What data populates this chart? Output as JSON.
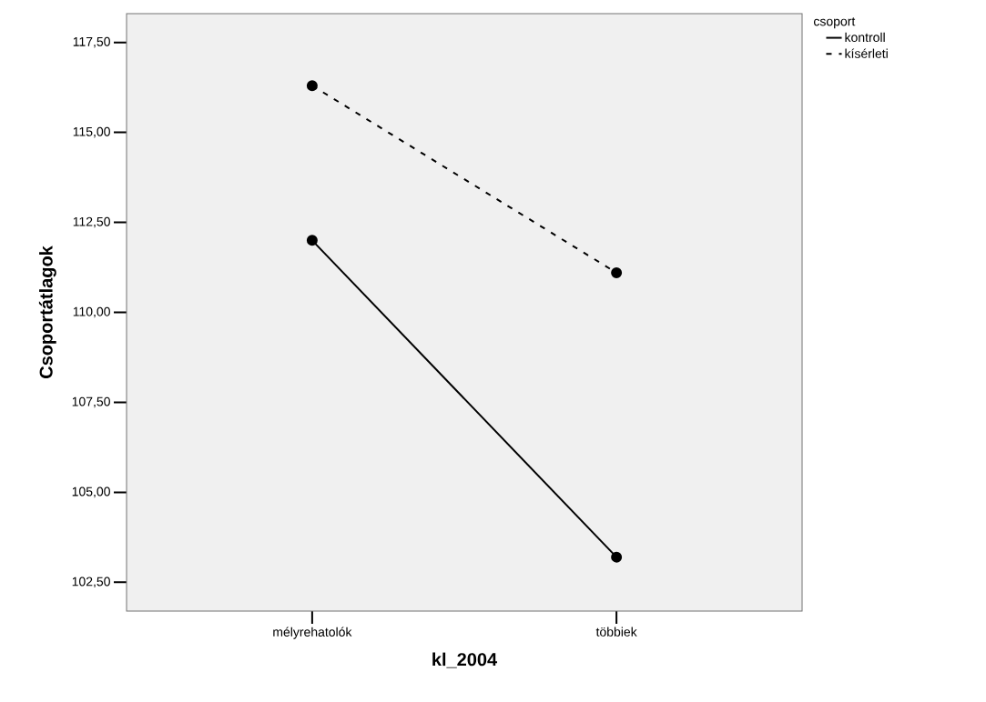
{
  "chart_data": {
    "type": "line",
    "xlabel": "kl_2004",
    "ylabel": "Csoportátlagok",
    "legend_title": "csoport",
    "legend": "top right",
    "marker": "circle",
    "categories": [
      "mélyrehatolók",
      "többiek"
    ],
    "series": [
      {
        "name": "kontroll",
        "color": "#000000",
        "line_style": "solid",
        "values": [
          112.0,
          103.2
        ]
      },
      {
        "name": "kísérleti",
        "color": "#000000",
        "line_style": "dashed",
        "values": [
          116.3,
          111.1
        ]
      }
    ],
    "ylim": [
      101.7,
      118.3
    ],
    "yticks": [
      {
        "value": 102.5,
        "label": "102,50"
      },
      {
        "value": 105,
        "label": "105,00"
      },
      {
        "value": 107.5,
        "label": "107,50"
      },
      {
        "value": 110,
        "label": "110,00"
      },
      {
        "value": 112.5,
        "label": "112,50"
      },
      {
        "value": 115,
        "label": "115,00"
      },
      {
        "value": 117.5,
        "label": "117,50"
      }
    ]
  }
}
